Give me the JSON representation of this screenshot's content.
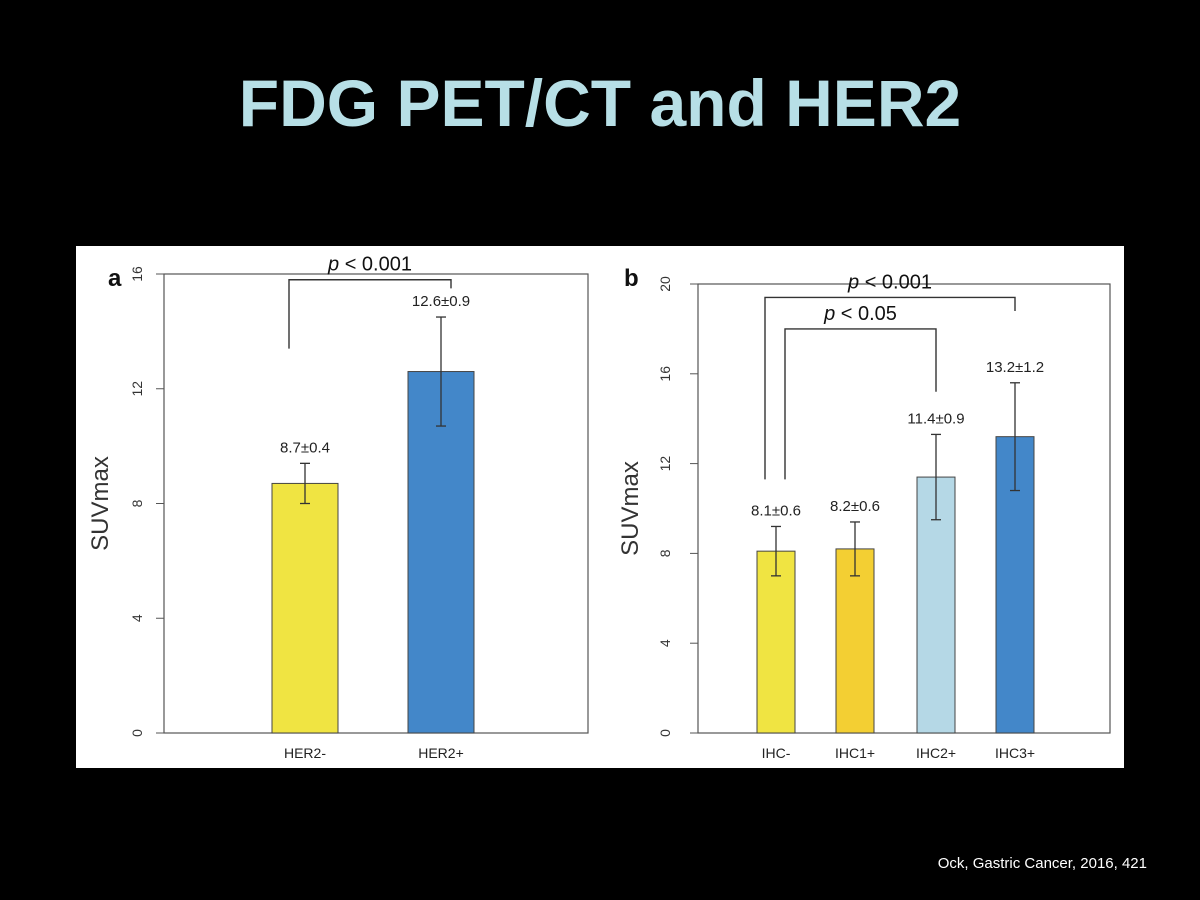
{
  "slide": {
    "title": "FDG PET/CT and HER2",
    "citation": "Ock, Gastric Cancer, 2016, 421"
  },
  "chart_data": [
    {
      "type": "bar",
      "panel_label": "a",
      "categories": [
        "HER2-",
        "HER2+"
      ],
      "values": [
        8.7,
        12.6
      ],
      "errors": [
        0.7,
        1.9
      ],
      "value_labels": [
        "8.7±0.4",
        "12.6±0.9"
      ],
      "colors": [
        "#f0e442",
        "#4387c9"
      ],
      "ylabel": "SUVmax",
      "ylim": [
        0,
        16
      ],
      "yticks": [
        0,
        4,
        8,
        12,
        16
      ],
      "grid": false,
      "comparisons": [
        {
          "from": 0,
          "to": 1,
          "level": 15.8,
          "from_y": 13.4,
          "to_y": 15.5,
          "p_label": "< 0.001"
        }
      ]
    },
    {
      "type": "bar",
      "panel_label": "b",
      "categories": [
        "IHC-",
        "IHC1+",
        "IHC2+",
        "IHC3+"
      ],
      "values": [
        8.1,
        8.2,
        11.4,
        13.2
      ],
      "errors": [
        1.1,
        1.2,
        1.9,
        2.4
      ],
      "value_labels": [
        "8.1±0.6",
        "8.2±0.6",
        "11.4±0.9",
        "13.2±1.2"
      ],
      "colors": [
        "#f0e442",
        "#f3cf33",
        "#b5d8e6",
        "#4387c9"
      ],
      "ylabel": "SUVmax",
      "ylim": [
        0,
        20
      ],
      "yticks": [
        0,
        4,
        8,
        12,
        16,
        20
      ],
      "grid": false,
      "comparisons": [
        {
          "from": 0,
          "to": 3,
          "level": 19.4,
          "from_y": 11.3,
          "to_y": 18.8,
          "p_label": "< 0.001"
        },
        {
          "from": 0,
          "to": 2,
          "level": 18.0,
          "from_y": 11.3,
          "to_y": 15.2,
          "p_label": "< 0.05"
        }
      ]
    }
  ]
}
